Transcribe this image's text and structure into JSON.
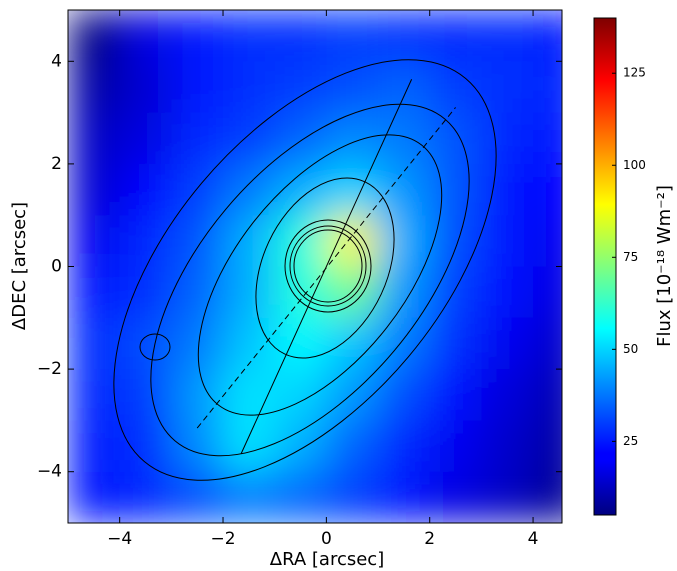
{
  "chart_data": {
    "type": "heatmap",
    "colormap": "jet",
    "x_label": "ΔRA [arcsec]",
    "y_label": "ΔDEC [arcsec]",
    "x": [
      -4.5,
      -3.5,
      -2.5,
      -1.5,
      -0.5,
      0.5,
      1.5,
      2.5,
      3.5,
      4.5
    ],
    "y": [
      4.5,
      3.5,
      2.5,
      1.5,
      0.5,
      -0.5,
      -1.5,
      -2.5,
      -3.5,
      -4.5
    ],
    "values": [
      [
        5,
        18,
        25,
        28,
        28,
        30,
        28,
        27,
        28,
        25
      ],
      [
        10,
        16,
        25,
        28,
        30,
        32,
        35,
        30,
        28,
        27
      ],
      [
        14,
        18,
        27,
        30,
        35,
        40,
        38,
        33,
        27,
        25
      ],
      [
        16,
        22,
        30,
        38,
        45,
        50,
        42,
        33,
        25,
        22
      ],
      [
        20,
        27,
        33,
        45,
        60,
        90,
        45,
        32,
        25,
        20
      ],
      [
        25,
        28,
        35,
        45,
        60,
        70,
        42,
        30,
        23,
        18
      ],
      [
        28,
        32,
        38,
        48,
        55,
        48,
        38,
        28,
        20,
        15
      ],
      [
        27,
        30,
        42,
        52,
        50,
        42,
        32,
        24,
        17,
        12
      ],
      [
        26,
        28,
        40,
        52,
        45,
        35,
        27,
        20,
        15,
        10
      ],
      [
        25,
        27,
        32,
        38,
        35,
        30,
        25,
        18,
        14,
        8
      ]
    ],
    "xlim": [
      -5,
      4.56
    ],
    "ylim": [
      -5,
      5
    ],
    "xticks": [
      {
        "value": -4,
        "label": "−4"
      },
      {
        "value": -2,
        "label": "−2"
      },
      0,
      2,
      4
    ],
    "yticks": [
      {
        "value": -4,
        "label": "−4"
      },
      {
        "value": -2,
        "label": "−2"
      },
      0,
      2,
      4
    ],
    "overlays": [
      {
        "style": "solid",
        "x": [
          -1.65,
          1.65
        ],
        "y": [
          -3.65,
          3.65
        ]
      },
      {
        "style": "dashed",
        "x": [
          -2.5,
          2.5
        ],
        "y": [
          -3.15,
          3.1
        ]
      }
    ],
    "colorbar": {
      "label": "Flux [10⁻¹⁸ Wm⁻²]",
      "lim": [
        5,
        140
      ],
      "ticks": [
        25,
        50,
        75,
        100,
        125
      ]
    }
  }
}
